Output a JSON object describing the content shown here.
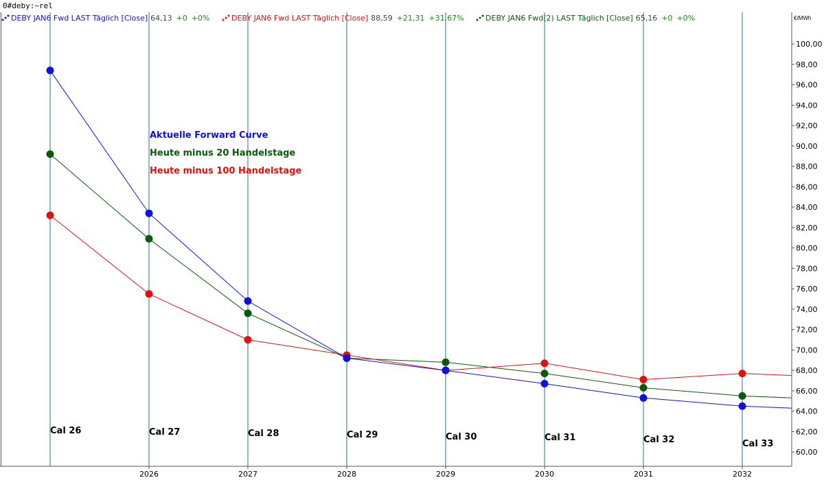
{
  "symbol": "0#deby:~rel",
  "unit": "€/MWh",
  "legend": [
    {
      "name": "DEBY JAN6 Fwd LAST Täglich [Close]",
      "value": "64,13",
      "change": "+0",
      "pct": "+0%",
      "color": "#1010e0"
    },
    {
      "name": "DEBY JAN6 Fwd LAST Täglich [Close]",
      "value": "88,59",
      "change": "+21,31",
      "pct": "+31,67%",
      "color": "#e01010"
    },
    {
      "name": "DEBY JAN6 Fwd(2) LAST Täglich [Close]",
      "value": "65,16",
      "change": "+0",
      "pct": "+0%",
      "color": "#0a5a0a"
    }
  ],
  "annotations": [
    {
      "text": "Aktuelle Forward Curve",
      "color": "#1010e0"
    },
    {
      "text": "Heute minus 20 Handelstage",
      "color": "#0a5a0a"
    },
    {
      "text": "Heute minus 100 Handelstage",
      "color": "#e01010"
    }
  ],
  "colors": {
    "background": "#ffffff",
    "gridline": "#2b6e8c",
    "axis": "#555555"
  },
  "chart_data": {
    "type": "line",
    "categories": [
      "Cal 26",
      "Cal 27",
      "Cal 28",
      "Cal 29",
      "Cal 30",
      "Cal 31",
      "Cal 32",
      "Cal 33"
    ],
    "xtick_labels": [
      "2026",
      "2027",
      "2028",
      "2029",
      "2030",
      "2031",
      "2032"
    ],
    "ylim": [
      58.6,
      103.1
    ],
    "yticks": [
      60,
      62,
      64,
      66,
      68,
      70,
      72,
      74,
      76,
      78,
      80,
      82,
      84,
      86,
      88,
      90,
      92,
      94,
      96,
      98,
      100
    ],
    "ytick_labels": [
      "60,00",
      "62,00",
      "64,00",
      "66,00",
      "68,00",
      "70,00",
      "72,00",
      "74,00",
      "76,00",
      "78,00",
      "80,00",
      "82,00",
      "84,00",
      "86,00",
      "88,00",
      "90,00",
      "92,00",
      "94,00",
      "96,00",
      "98,00",
      "100,00"
    ],
    "grid": true,
    "series": [
      {
        "key": "blue",
        "color": "#1010e0",
        "values": [
          97.4,
          83.4,
          74.8,
          69.2,
          68.0,
          66.7,
          65.3,
          64.5
        ],
        "tail": 64.3
      },
      {
        "key": "green",
        "color": "#0a5a0a",
        "values": [
          89.2,
          80.9,
          73.6,
          69.2,
          68.8,
          67.7,
          66.3,
          65.5
        ],
        "tail": 65.3
      },
      {
        "key": "red",
        "color": "#e01010",
        "values": [
          83.2,
          75.5,
          71.0,
          69.5,
          68.0,
          68.7,
          67.1,
          67.7
        ],
        "tail": 67.5
      }
    ]
  }
}
